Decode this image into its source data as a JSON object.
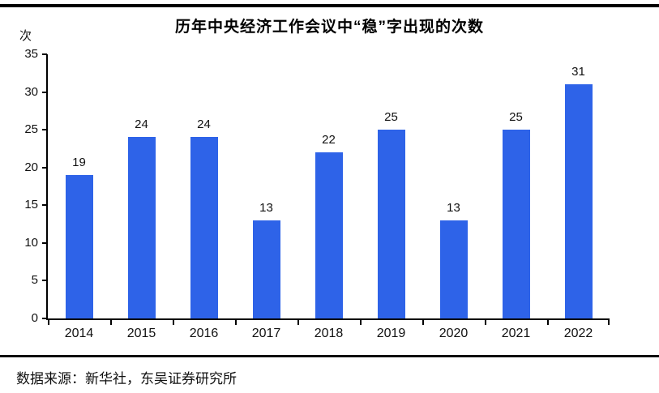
{
  "figure": {
    "y_unit_label": "次",
    "source_label": "数据来源：新华社，东吴证券研究所"
  },
  "chart_data": {
    "type": "bar",
    "title": "历年中央经济工作会议中“稳”字出现的次数",
    "categories": [
      "2014",
      "2015",
      "2016",
      "2017",
      "2018",
      "2019",
      "2020",
      "2021",
      "2022"
    ],
    "values": [
      19,
      24,
      24,
      13,
      22,
      25,
      13,
      25,
      31
    ],
    "xlabel": "",
    "ylabel": "次",
    "ylim": [
      0,
      35
    ],
    "yticks": [
      0,
      5,
      10,
      15,
      20,
      25,
      30,
      35
    ],
    "grid": false,
    "legend": "none",
    "data_labels": true,
    "bar_color": "#2E63E8",
    "axis_color": "#000000",
    "text_color": "#111111"
  }
}
